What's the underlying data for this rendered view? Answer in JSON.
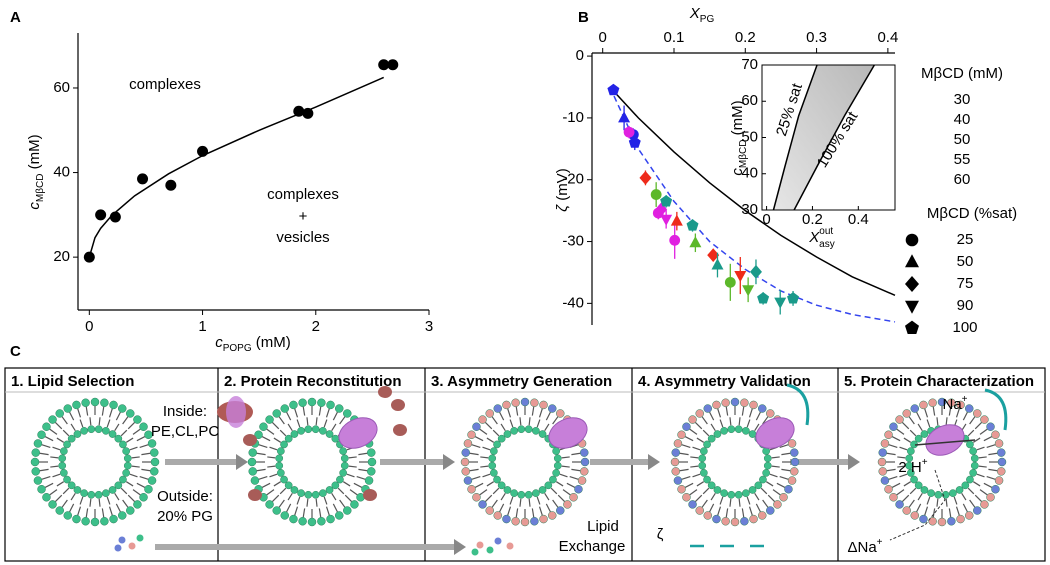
{
  "panel_labels": [
    "A",
    "B",
    "C"
  ],
  "chart_data": [
    {
      "type": "scatter",
      "x_label": {
        "main": "c",
        "sub": "POPG",
        "unit": "(mM)"
      },
      "y_label": {
        "main": "c",
        "sub": "MβCD",
        "unit": "(mM)"
      },
      "annotations": [
        "complexes",
        "complexes",
        "+",
        "vesicles"
      ],
      "x": [
        0,
        0.1,
        0.23,
        0.47,
        0.72,
        1,
        1.85,
        1.93,
        2.6,
        2.68
      ],
      "values": [
        20,
        30,
        29.5,
        38.5,
        37,
        45,
        54.5,
        54,
        65.5,
        65.5
      ],
      "color": "#000000",
      "fit": {
        "x": [
          0,
          0.05,
          0.1,
          0.2,
          0.4,
          0.7,
          1,
          1.5,
          2,
          2.6
        ],
        "values": [
          20,
          24.6,
          26.8,
          29.9,
          34.5,
          39.7,
          44,
          50,
          55.5,
          62.5
        ]
      },
      "xlim": [
        -0.1,
        3
      ],
      "ylim": [
        7.5,
        73
      ],
      "xticks": [
        0,
        1,
        2,
        3
      ],
      "yticks": [
        20,
        40,
        60
      ]
    },
    {
      "type": "scatter",
      "x_label": {
        "main": "X",
        "sub": "PG"
      },
      "y_label": {
        "main": "ζ",
        "unit": "(mV)"
      },
      "legend_title": "MβCD (mM)",
      "series": [
        {
          "name": "30",
          "color": "#2323e6",
          "x": [
            0.015,
            0.03,
            0.043,
            0.045
          ],
          "values": [
            -5.5,
            -10,
            -12.7,
            -14
          ],
          "errors": [
            0.8,
            2,
            1,
            1.2
          ],
          "markers": [
            "pentagon",
            "triangle",
            "circle",
            "pentagon"
          ]
        },
        {
          "name": "40",
          "color": "#e020e0",
          "x": [
            0.037,
            0.078,
            0.082,
            0.089,
            0.101
          ],
          "values": [
            -12.3,
            -25.4,
            -24.8,
            -26.4,
            -29.8
          ],
          "errors": [
            1,
            1,
            1,
            1.5,
            3
          ],
          "markers": [
            "circle",
            "circle",
            "diamond",
            "down",
            "circle"
          ]
        },
        {
          "name": "50",
          "color": "#ee2a1a",
          "x": [
            0.06,
            0.104,
            0.155,
            0.193
          ],
          "values": [
            -19.7,
            -26.7,
            -32.2,
            -35.5
          ],
          "errors": [
            1.2,
            1.5,
            1,
            3
          ],
          "markers": [
            "diamond",
            "triangle",
            "diamond",
            "down"
          ]
        },
        {
          "name": "55",
          "color": "#5cb82a",
          "x": [
            0.075,
            0.13,
            0.179,
            0.204
          ],
          "values": [
            -22.4,
            -30.2,
            -36.6,
            -37.8
          ],
          "errors": [
            2,
            1.5,
            3,
            2
          ],
          "markers": [
            "circle",
            "triangle",
            "circle",
            "down"
          ]
        },
        {
          "name": "60",
          "color": "#1a9a8a",
          "x": [
            0.089,
            0.126,
            0.161,
            0.215,
            0.225,
            0.249,
            0.267
          ],
          "values": [
            -23.5,
            -27.4,
            -33.8,
            -34.9,
            -39.2,
            -39.8,
            -39.2
          ],
          "errors": [
            1,
            1,
            2,
            2,
            1,
            2,
            1.2
          ],
          "markers": [
            "pentagon",
            "pentagon",
            "triangle",
            "diamond",
            "pentagon",
            "down",
            "pentagon"
          ]
        }
      ],
      "marker_legend": {
        "title": "MβCD (%sat)",
        "names": [
          "25",
          "50",
          "75",
          "90",
          "100"
        ],
        "markers": [
          "circle",
          "triangle",
          "diamond",
          "down",
          "pentagon"
        ]
      },
      "lines": [
        {
          "color": "#000000",
          "dash": false,
          "x": [
            0.01,
            0.05,
            0.1,
            0.15,
            0.2,
            0.25,
            0.3,
            0.35,
            0.41
          ],
          "values": [
            -5,
            -10,
            -15.5,
            -20.5,
            -25,
            -29,
            -32.5,
            -35.7,
            -38.7
          ]
        },
        {
          "color": "#3344ee",
          "dash": true,
          "x": [
            0.01,
            0.05,
            0.1,
            0.15,
            0.2,
            0.25,
            0.3,
            0.35,
            0.41
          ],
          "values": [
            -5,
            -15,
            -23.5,
            -30,
            -34.5,
            -38,
            -40.3,
            -41.8,
            -43
          ]
        }
      ],
      "xlim": [
        -0.015,
        0.41
      ],
      "ylim": [
        -43.5,
        0.5
      ],
      "xticks": [
        0,
        0.1,
        0.2,
        0.3,
        0.4
      ],
      "yticks": [
        0,
        -10,
        -20,
        -30,
        -40
      ]
    },
    {
      "type": "area",
      "x_label": {
        "main": "X",
        "sub": "asy",
        "sup": "out"
      },
      "y_label": {
        "main": "c",
        "sub": "MβCD",
        "unit": "(mM)"
      },
      "series": [
        {
          "name": "25% sat",
          "x": [
            0.03,
            0.08,
            0.14,
            0.22
          ],
          "values": [
            30,
            42,
            56,
            70
          ]
        },
        {
          "name": "100% sat",
          "x": [
            0.12,
            0.22,
            0.34,
            0.47
          ],
          "values": [
            30,
            42,
            56,
            70
          ]
        }
      ],
      "fill": "#b8b8b8",
      "xlim": [
        -0.02,
        0.56
      ],
      "ylim": [
        30,
        70
      ],
      "xticks": [
        0,
        0.2,
        0.4
      ],
      "yticks": [
        30,
        40,
        50,
        60,
        70
      ]
    }
  ],
  "diagram": {
    "steps": [
      "1. Lipid Selection",
      "2. Protein Reconstitution",
      "3. Asymmetry Generation",
      "4. Asymmetry Validation",
      "5. Protein Characterization"
    ],
    "inside": [
      "Inside:",
      "PE,CL,PC"
    ],
    "outside": [
      "Outside:",
      "20% PG"
    ],
    "exchange": [
      "Lipid",
      "Exchange"
    ],
    "zeta": "ζ",
    "ions": {
      "na": "Na",
      "na_sup": "+",
      "h": "2 H",
      "h_sup": "+",
      "delta": "ΔNa",
      "delta_sup": "+"
    }
  }
}
